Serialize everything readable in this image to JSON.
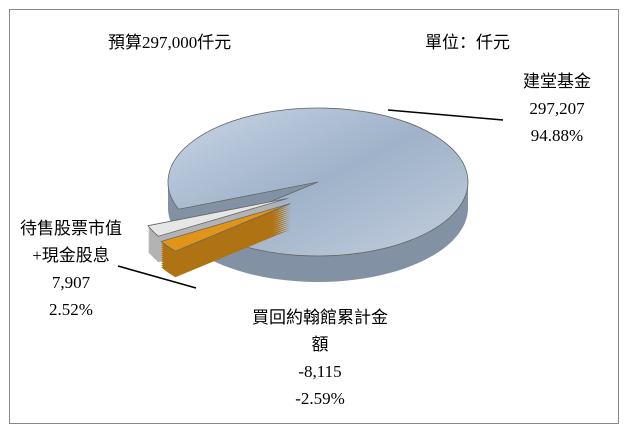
{
  "chart_data": {
    "type": "pie3d",
    "title": "預算297,000仟元",
    "subtitle": "單位：仟元",
    "categories": [
      "建堂基金",
      "待售股票市值+現金股息",
      "買回約翰館累計金額"
    ],
    "values": [
      297207,
      7907,
      -8115
    ],
    "value_labels": [
      "297,207",
      "7,907",
      "-8,115"
    ],
    "percents": [
      94.88,
      2.52,
      -2.59
    ],
    "percent_labels": [
      "94.88%",
      "2.52%",
      "-2.59%"
    ],
    "colors": [
      "#a7bbd2",
      "#e6e6e6",
      "#e09418"
    ]
  }
}
